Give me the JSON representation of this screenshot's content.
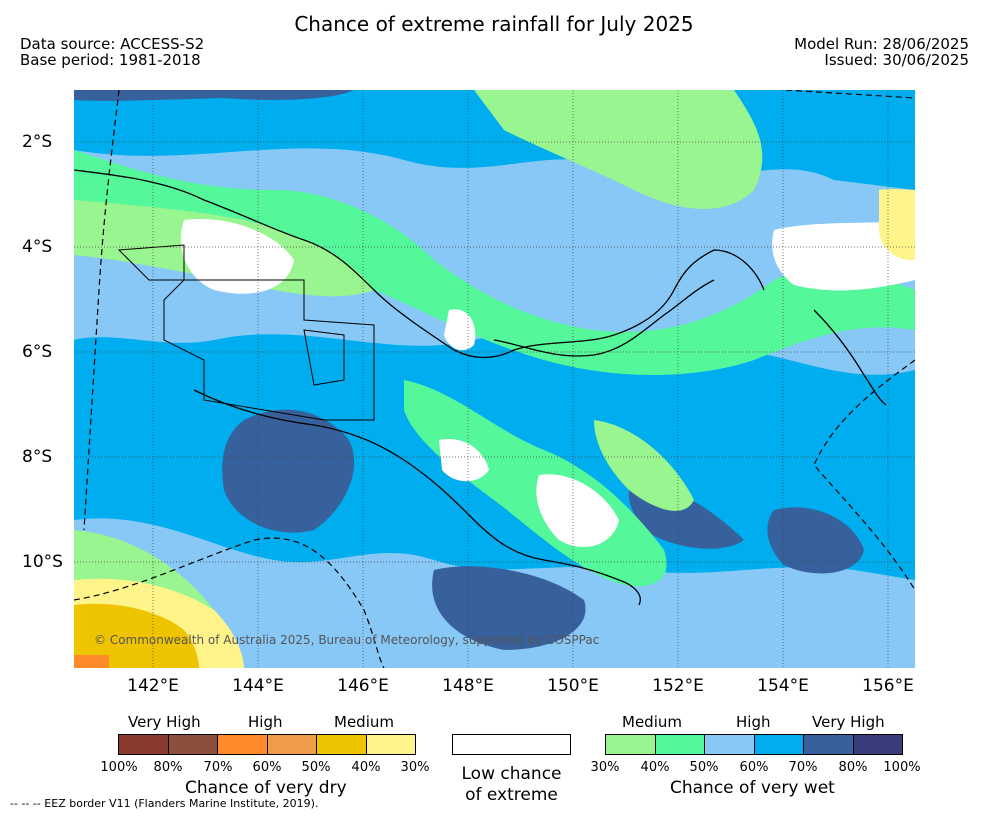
{
  "header": {
    "title": "Chance of extreme rainfall for July 2025",
    "data_source": "Data source: ACCESS-S2",
    "base_period": "Base period: 1981-2018",
    "model_run": "Model Run: 28/06/2025",
    "issued": "Issued: 30/06/2025"
  },
  "map": {
    "lat_labels": [
      "2°S",
      "4°S",
      "6°S",
      "8°S",
      "10°S"
    ],
    "lon_labels": [
      "142°E",
      "144°E",
      "146°E",
      "148°E",
      "150°E",
      "152°E",
      "154°E",
      "156°E"
    ],
    "copyright": "© Commonwealth of Australia 2025, Bureau of Meteorology, supported by COSPPac",
    "eez_note": "--  --  -- EEZ border V11 (Flanders Marine Institute, 2019)."
  },
  "legend": {
    "dry": {
      "levels": [
        "Very High",
        "High",
        "Medium"
      ],
      "percent_labels": [
        "100%",
        "80%",
        "70%",
        "60%",
        "50%",
        "40%",
        "30%"
      ],
      "colors": [
        "#8b3a2f",
        "#8c4f3e",
        "#ff8a2a",
        "#ee9b4a",
        "#eec400",
        "#fff48a"
      ],
      "caption": "Chance of very dry"
    },
    "neutral": {
      "caption_line1": "Low chance",
      "caption_line2": "of extreme",
      "color": "#ffffff"
    },
    "wet": {
      "levels": [
        "Medium",
        "High",
        "Very High"
      ],
      "percent_labels": [
        "30%",
        "40%",
        "50%",
        "60%",
        "70%",
        "80%",
        "100%"
      ],
      "colors": [
        "#99f58f",
        "#55f79b",
        "#87c8f7",
        "#00aeef",
        "#37619c",
        "#3a3c7a"
      ],
      "caption": "Chance of very wet"
    }
  }
}
